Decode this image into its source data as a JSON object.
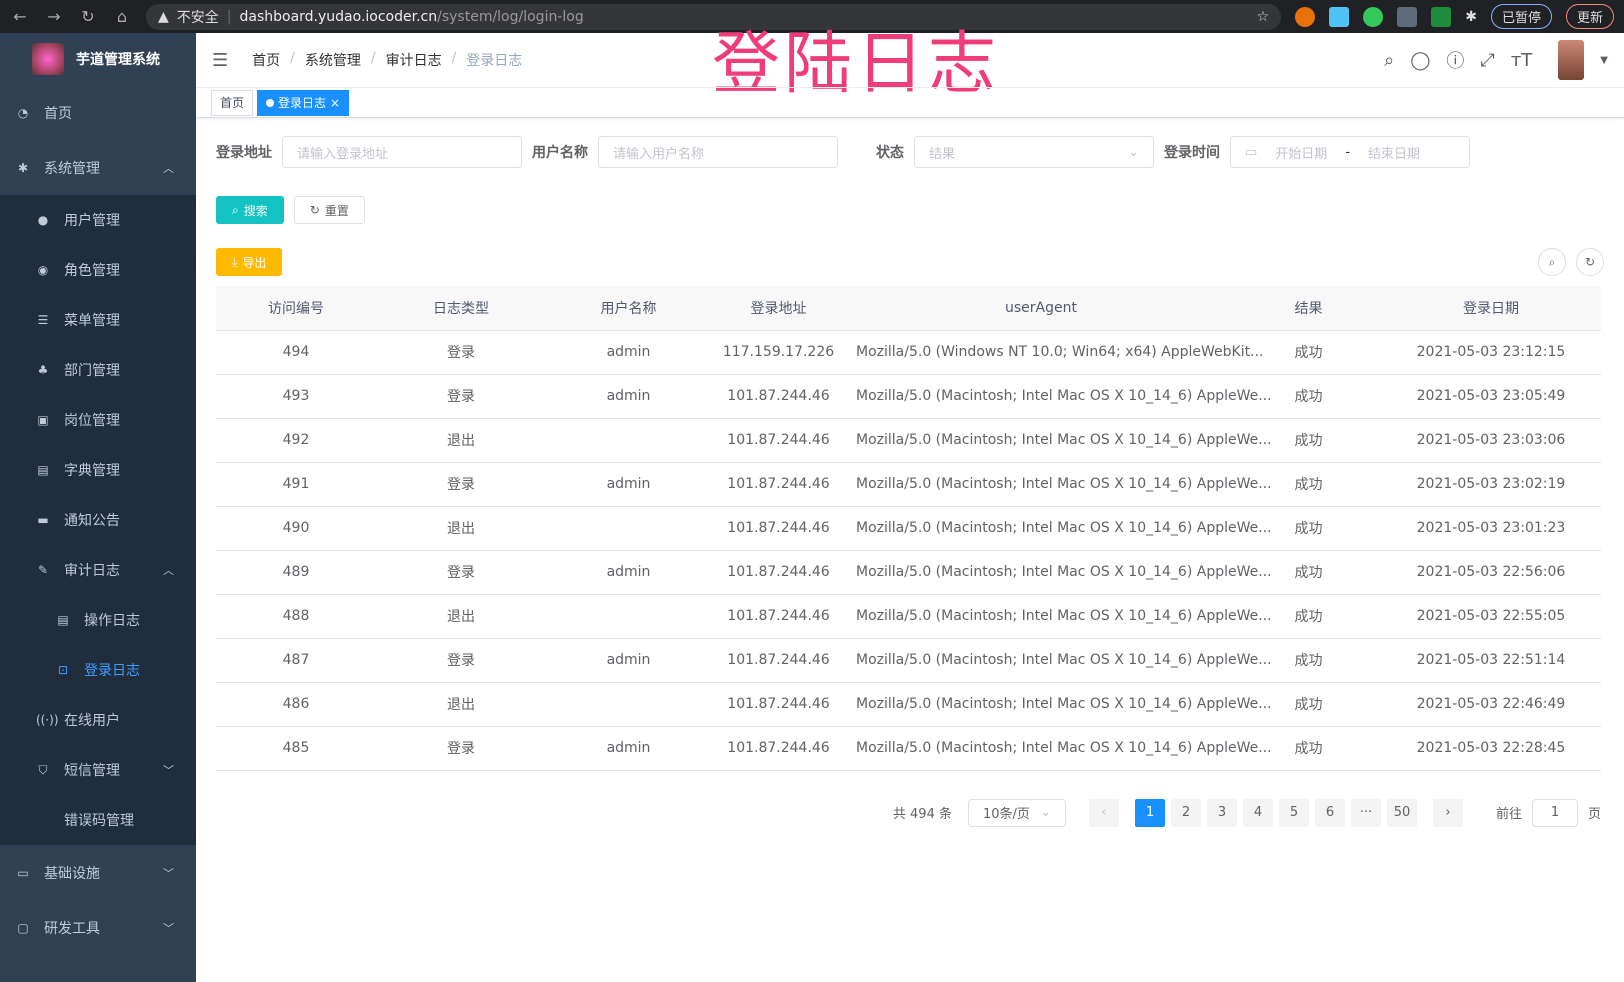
{
  "browser": {
    "security": "不安全",
    "host": "dashboard.yudao.iocoder.cn",
    "path": "/system/log/login-log",
    "paused": "已暂停",
    "update": "更新"
  },
  "overlay_title": "登陆日志",
  "sidebar": {
    "title": "芋道管理系统",
    "items": [
      {
        "label": "首页",
        "icon": "dashboard-icon",
        "level": 0
      },
      {
        "label": "系统管理",
        "icon": "gear-icon",
        "level": 0,
        "arrow": "up"
      },
      {
        "label": "用户管理",
        "icon": "user-icon",
        "level": 1
      },
      {
        "label": "角色管理",
        "icon": "peoples-icon",
        "level": 1
      },
      {
        "label": "菜单管理",
        "icon": "tree-table-icon",
        "level": 1
      },
      {
        "label": "部门管理",
        "icon": "tree-icon",
        "level": 1
      },
      {
        "label": "岗位管理",
        "icon": "post-icon",
        "level": 1
      },
      {
        "label": "字典管理",
        "icon": "dict-icon",
        "level": 1
      },
      {
        "label": "通知公告",
        "icon": "message-icon",
        "level": 1
      },
      {
        "label": "审计日志",
        "icon": "form-icon",
        "level": 1,
        "arrow": "up"
      },
      {
        "label": "操作日志",
        "icon": "log-icon",
        "level": 2
      },
      {
        "label": "登录日志",
        "icon": "login-log-icon",
        "level": 2,
        "active": true
      },
      {
        "label": "在线用户",
        "icon": "online-icon",
        "level": 1
      },
      {
        "label": "短信管理",
        "icon": "shield-icon",
        "level": 1,
        "arrow": "down"
      },
      {
        "label": "错误码管理",
        "icon": "code-icon",
        "level": 1
      },
      {
        "label": "基础设施",
        "icon": "monitor-icon",
        "level": 0,
        "arrow": "down"
      },
      {
        "label": "研发工具",
        "icon": "tool-icon",
        "level": 0,
        "arrow": "down"
      }
    ]
  },
  "breadcrumb": [
    "首页",
    "系统管理",
    "审计日志",
    "登录日志"
  ],
  "tags": [
    {
      "label": "首页"
    },
    {
      "label": "登录日志",
      "close": "×"
    }
  ],
  "filters": {
    "address_label": "登录地址",
    "address_placeholder": "请输入登录地址",
    "username_label": "用户名称",
    "username_placeholder": "请输入用户名称",
    "status_label": "状态",
    "status_placeholder": "结果",
    "time_label": "登录时间",
    "start_placeholder": "开始日期",
    "sep": "-",
    "end_placeholder": "结束日期"
  },
  "buttons": {
    "search": "搜索",
    "reset": "重置",
    "export": "导出"
  },
  "table": {
    "columns": [
      "访问编号",
      "日志类型",
      "用户名称",
      "登录地址",
      "userAgent",
      "结果",
      "登录日期"
    ],
    "rows": [
      [
        "494",
        "登录",
        "admin",
        "117.159.17.226",
        "Mozilla/5.0 (Windows NT 10.0; Win64; x64) AppleWebKit...",
        "成功",
        "2021-05-03 23:12:15"
      ],
      [
        "493",
        "登录",
        "admin",
        "101.87.244.46",
        "Mozilla/5.0 (Macintosh; Intel Mac OS X 10_14_6) AppleWe...",
        "成功",
        "2021-05-03 23:05:49"
      ],
      [
        "492",
        "退出",
        "",
        "101.87.244.46",
        "Mozilla/5.0 (Macintosh; Intel Mac OS X 10_14_6) AppleWe...",
        "成功",
        "2021-05-03 23:03:06"
      ],
      [
        "491",
        "登录",
        "admin",
        "101.87.244.46",
        "Mozilla/5.0 (Macintosh; Intel Mac OS X 10_14_6) AppleWe...",
        "成功",
        "2021-05-03 23:02:19"
      ],
      [
        "490",
        "退出",
        "",
        "101.87.244.46",
        "Mozilla/5.0 (Macintosh; Intel Mac OS X 10_14_6) AppleWe...",
        "成功",
        "2021-05-03 23:01:23"
      ],
      [
        "489",
        "登录",
        "admin",
        "101.87.244.46",
        "Mozilla/5.0 (Macintosh; Intel Mac OS X 10_14_6) AppleWe...",
        "成功",
        "2021-05-03 22:56:06"
      ],
      [
        "488",
        "退出",
        "",
        "101.87.244.46",
        "Mozilla/5.0 (Macintosh; Intel Mac OS X 10_14_6) AppleWe...",
        "成功",
        "2021-05-03 22:55:05"
      ],
      [
        "487",
        "登录",
        "admin",
        "101.87.244.46",
        "Mozilla/5.0 (Macintosh; Intel Mac OS X 10_14_6) AppleWe...",
        "成功",
        "2021-05-03 22:51:14"
      ],
      [
        "486",
        "退出",
        "",
        "101.87.244.46",
        "Mozilla/5.0 (Macintosh; Intel Mac OS X 10_14_6) AppleWe...",
        "成功",
        "2021-05-03 22:46:49"
      ],
      [
        "485",
        "登录",
        "admin",
        "101.87.244.46",
        "Mozilla/5.0 (Macintosh; Intel Mac OS X 10_14_6) AppleWe...",
        "成功",
        "2021-05-03 22:28:45"
      ]
    ]
  },
  "pagination": {
    "total": "共 494 条",
    "page_size": "10条/页",
    "pages": [
      "1",
      "2",
      "3",
      "4",
      "5",
      "6",
      "···",
      "50"
    ],
    "current": "1",
    "goto_label": "前往",
    "goto_value": "1",
    "goto_suffix": "页"
  }
}
